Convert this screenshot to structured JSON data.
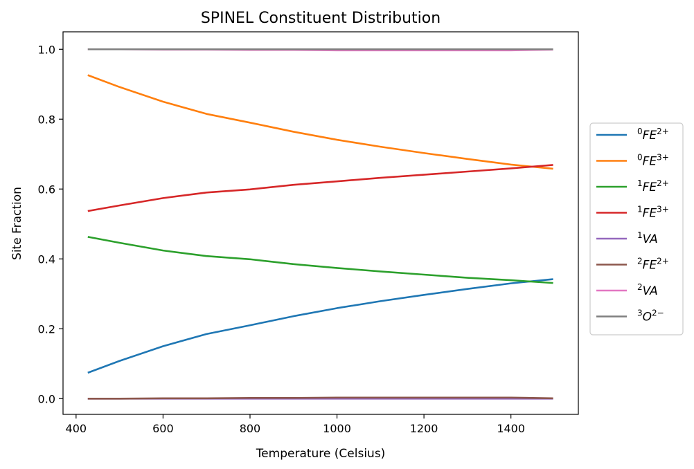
{
  "chart_data": {
    "type": "line",
    "title": "SPINEL Constituent Distribution",
    "xlabel": "Temperature (Celsius)",
    "ylabel": "Site Fraction",
    "xlim": [
      370,
      1555
    ],
    "ylim": [
      -0.045,
      1.05
    ],
    "xticks": [
      400,
      600,
      800,
      1000,
      1200,
      1400
    ],
    "yticks": [
      0.0,
      0.2,
      0.4,
      0.6,
      0.8,
      1.0
    ],
    "xtick_labels": [
      "400",
      "600",
      "800",
      "1000",
      "1200",
      "1400"
    ],
    "ytick_labels": [
      "0.0",
      "0.2",
      "0.4",
      "0.6",
      "0.8",
      "1.0"
    ],
    "grid": false,
    "legend_position": "right, outside plot",
    "x": [
      427,
      500,
      600,
      700,
      800,
      900,
      1000,
      1100,
      1200,
      1300,
      1400,
      1497
    ],
    "series": [
      {
        "name": "0FE2+",
        "sup_left": "0",
        "base": "FE",
        "sup_right": "2+",
        "color": "#1f77b4",
        "values": [
          0.074,
          0.108,
          0.15,
          0.185,
          0.21,
          0.236,
          0.259,
          0.279,
          0.297,
          0.314,
          0.33,
          0.342
        ]
      },
      {
        "name": "0FE3+",
        "sup_left": "0",
        "base": "FE",
        "sup_right": "3+",
        "color": "#ff7f0e",
        "values": [
          0.926,
          0.892,
          0.85,
          0.815,
          0.79,
          0.764,
          0.741,
          0.721,
          0.703,
          0.686,
          0.67,
          0.658
        ]
      },
      {
        "name": "1FE2+",
        "sup_left": "1",
        "base": "FE",
        "sup_right": "2+",
        "color": "#2ca02c",
        "values": [
          0.463,
          0.446,
          0.424,
          0.408,
          0.399,
          0.385,
          0.374,
          0.364,
          0.355,
          0.346,
          0.339,
          0.331
        ]
      },
      {
        "name": "1FE3+",
        "sup_left": "1",
        "base": "FE",
        "sup_right": "3+",
        "color": "#d62728",
        "values": [
          0.537,
          0.553,
          0.574,
          0.59,
          0.599,
          0.612,
          0.622,
          0.632,
          0.641,
          0.65,
          0.659,
          0.669
        ]
      },
      {
        "name": "1VA",
        "sup_left": "1",
        "base": "VA",
        "sup_right": "",
        "color": "#9467bd",
        "values": [
          0.0,
          0.0,
          0.0,
          0.0,
          0.0,
          0.0,
          0.0,
          0.0,
          0.0,
          0.0,
          0.0,
          0.0
        ]
      },
      {
        "name": "2FE2+",
        "sup_left": "2",
        "base": "FE",
        "sup_right": "2+",
        "color": "#8c564b",
        "values": [
          0.0,
          0.0,
          0.001,
          0.001,
          0.002,
          0.002,
          0.003,
          0.003,
          0.003,
          0.003,
          0.003,
          0.001
        ]
      },
      {
        "name": "2VA",
        "sup_left": "2",
        "base": "VA",
        "sup_right": "",
        "color": "#e377c2",
        "values": [
          1.0,
          1.0,
          0.999,
          0.999,
          0.998,
          0.998,
          0.997,
          0.997,
          0.997,
          0.997,
          0.997,
          0.999
        ]
      },
      {
        "name": "3O2-",
        "sup_left": "3",
        "base": "O",
        "sup_right": "2−",
        "color": "#7f7f7f",
        "values": [
          1.0,
          1.0,
          1.0,
          1.0,
          1.0,
          1.0,
          1.0,
          1.0,
          1.0,
          1.0,
          1.0,
          1.0
        ]
      }
    ]
  }
}
